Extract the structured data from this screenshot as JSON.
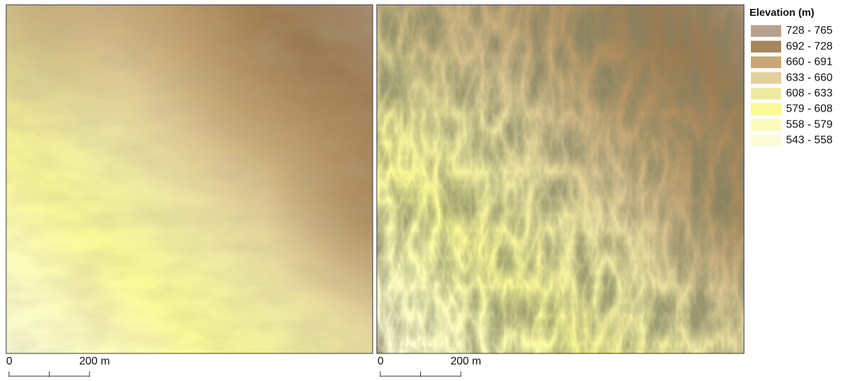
{
  "panels": [
    {
      "scale_bar": {
        "start": "0",
        "end": "200 m"
      }
    },
    {
      "scale_bar": {
        "start": "0",
        "end": "200 m"
      }
    }
  ],
  "legend": {
    "title": "Elevation (m)",
    "items": [
      {
        "label": "728 - 765",
        "color": "#b8a08f"
      },
      {
        "label": "692 - 728",
        "color": "#a9865b"
      },
      {
        "label": "660 - 691",
        "color": "#c9a774"
      },
      {
        "label": "633 - 660",
        "color": "#e3cf9a"
      },
      {
        "label": "608 - 633",
        "color": "#eeeaa2"
      },
      {
        "label": "579 - 608",
        "color": "#f9f996"
      },
      {
        "label": "558 - 579",
        "color": "#fbfbbc"
      },
      {
        "label": "543 - 558",
        "color": "#fcfcd8"
      }
    ]
  }
}
